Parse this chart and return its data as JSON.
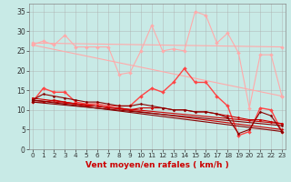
{
  "xlabel": "Vent moyen/en rafales ( km/h )",
  "background_color": "#c8eae6",
  "grid_color": "#aaaaaa",
  "x_values": [
    0,
    1,
    2,
    3,
    4,
    5,
    6,
    7,
    8,
    9,
    10,
    11,
    12,
    13,
    14,
    15,
    16,
    17,
    18,
    19,
    20,
    21,
    22,
    23
  ],
  "series": [
    {
      "color": "#ffaaaa",
      "linewidth": 0.8,
      "marker": "D",
      "markersize": 2.0,
      "style": "straight",
      "data": [
        27.0,
        26.0
      ]
    },
    {
      "color": "#ffaaaa",
      "linewidth": 0.8,
      "marker": "D",
      "markersize": 2.0,
      "style": "straight",
      "data": [
        26.5,
        13.5
      ]
    },
    {
      "color": "#ffaaaa",
      "linewidth": 0.8,
      "marker": "D",
      "markersize": 2.0,
      "style": "jagged",
      "data": [
        26.5,
        27.5,
        26.5,
        29.0,
        26.0,
        26.0,
        26.0,
        26.0,
        19.0,
        19.5,
        25.0,
        31.5,
        25.0,
        25.5,
        25.0,
        35.0,
        34.0,
        27.0,
        29.5,
        24.5,
        10.5,
        24.0,
        24.0,
        13.5
      ]
    },
    {
      "color": "#ff4444",
      "linewidth": 1.0,
      "marker": "D",
      "markersize": 2.0,
      "style": "jagged",
      "data": [
        12.0,
        15.5,
        14.5,
        14.5,
        12.0,
        11.5,
        11.5,
        11.0,
        11.0,
        11.0,
        13.5,
        15.5,
        14.5,
        17.0,
        20.5,
        17.0,
        17.0,
        13.5,
        11.0,
        3.5,
        4.5,
        10.5,
        10.0,
        4.5
      ]
    },
    {
      "color": "#cc0000",
      "linewidth": 0.8,
      "marker": "D",
      "markersize": 1.5,
      "style": "straight",
      "data": [
        13.0,
        5.0
      ]
    },
    {
      "color": "#cc0000",
      "linewidth": 0.8,
      "marker": "D",
      "markersize": 1.5,
      "style": "straight",
      "data": [
        12.5,
        6.5
      ]
    },
    {
      "color": "#cc0000",
      "linewidth": 0.8,
      "marker": "D",
      "markersize": 1.5,
      "style": "jagged",
      "data": [
        12.0,
        12.0,
        12.5,
        12.0,
        11.5,
        11.0,
        11.0,
        10.5,
        10.5,
        10.0,
        10.5,
        10.5,
        10.5,
        10.0,
        10.0,
        9.5,
        9.5,
        9.0,
        8.5,
        8.0,
        7.5,
        7.5,
        7.0,
        6.5
      ]
    },
    {
      "color": "#880000",
      "linewidth": 0.8,
      "marker": "D",
      "markersize": 1.5,
      "style": "straight",
      "data": [
        12.5,
        4.5
      ]
    },
    {
      "color": "#880000",
      "linewidth": 0.8,
      "marker": "D",
      "markersize": 1.5,
      "style": "straight",
      "data": [
        12.0,
        6.0
      ]
    },
    {
      "color": "#880000",
      "linewidth": 0.8,
      "marker": "D",
      "markersize": 1.5,
      "style": "jagged",
      "data": [
        12.5,
        14.0,
        13.5,
        13.0,
        12.5,
        12.0,
        12.0,
        11.5,
        11.0,
        11.0,
        11.5,
        11.0,
        10.5,
        10.0,
        10.0,
        9.5,
        9.5,
        9.0,
        8.0,
        4.0,
        5.0,
        9.5,
        8.5,
        4.5
      ]
    }
  ],
  "xlim": [
    -0.3,
    23.3
  ],
  "ylim": [
    0,
    37
  ],
  "yticks": [
    0,
    5,
    10,
    15,
    20,
    25,
    30,
    35
  ],
  "xticks": [
    0,
    1,
    2,
    3,
    4,
    5,
    6,
    7,
    8,
    9,
    10,
    11,
    12,
    13,
    14,
    15,
    16,
    17,
    18,
    19,
    20,
    21,
    22,
    23
  ],
  "tick_fontsize": 5.5,
  "xlabel_fontsize": 6.5,
  "xlabel_color": "#cc0000"
}
